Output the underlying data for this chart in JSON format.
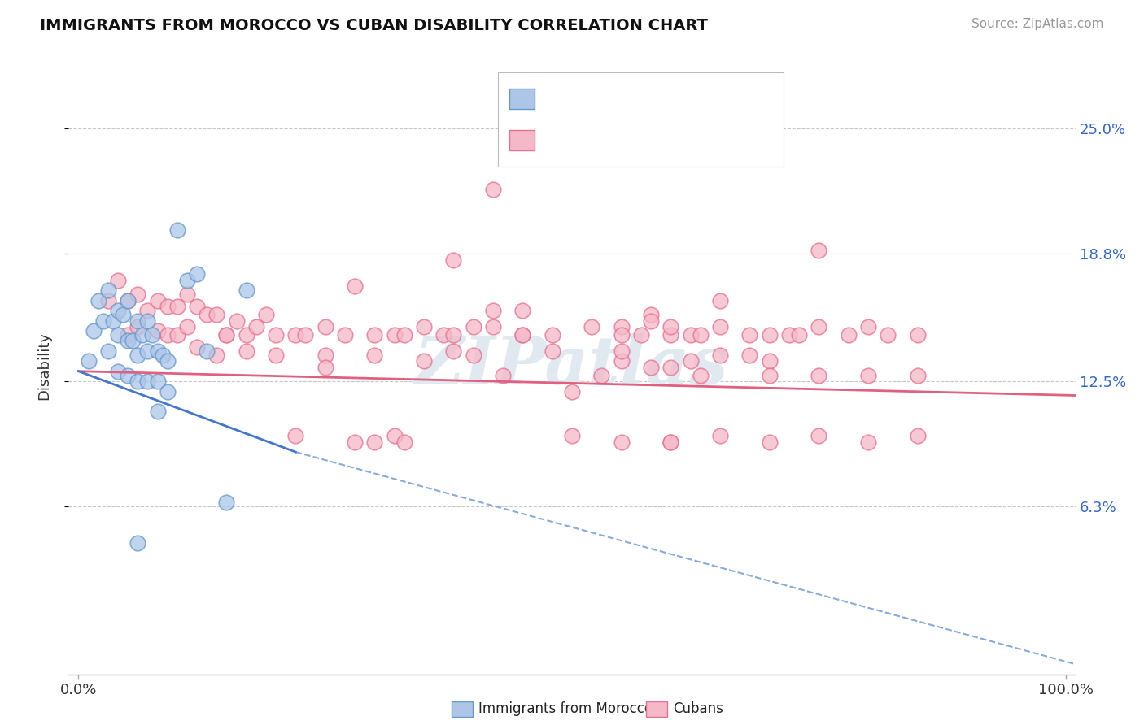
{
  "title": "IMMIGRANTS FROM MOROCCO VS CUBAN DISABILITY CORRELATION CHART",
  "source": "Source: ZipAtlas.com",
  "xlabel": "",
  "ylabel": "Disability",
  "xlim": [
    -0.01,
    1.01
  ],
  "ylim": [
    -0.02,
    0.285
  ],
  "yticks": [
    0.063,
    0.125,
    0.188,
    0.25
  ],
  "ytick_labels": [
    "6.3%",
    "12.5%",
    "18.8%",
    "25.0%"
  ],
  "xticks": [
    0.0,
    1.0
  ],
  "xtick_labels": [
    "0.0%",
    "100.0%"
  ],
  "blue_color": "#adc6e8",
  "pink_color": "#f5b8c8",
  "blue_edge": "#6699cc",
  "pink_edge": "#e87090",
  "blue_scatter_x": [
    0.01,
    0.015,
    0.02,
    0.025,
    0.03,
    0.03,
    0.035,
    0.04,
    0.04,
    0.04,
    0.045,
    0.05,
    0.05,
    0.05,
    0.055,
    0.06,
    0.06,
    0.06,
    0.065,
    0.07,
    0.07,
    0.07,
    0.075,
    0.08,
    0.08,
    0.085,
    0.09,
    0.09,
    0.1,
    0.11,
    0.12,
    0.13,
    0.15,
    0.17,
    0.08,
    0.06
  ],
  "blue_scatter_y": [
    0.135,
    0.15,
    0.165,
    0.155,
    0.17,
    0.14,
    0.155,
    0.16,
    0.148,
    0.13,
    0.158,
    0.165,
    0.145,
    0.128,
    0.145,
    0.155,
    0.138,
    0.125,
    0.148,
    0.155,
    0.14,
    0.125,
    0.148,
    0.14,
    0.125,
    0.138,
    0.135,
    0.12,
    0.2,
    0.175,
    0.178,
    0.14,
    0.065,
    0.17,
    0.11,
    0.045
  ],
  "pink_scatter_x": [
    0.03,
    0.04,
    0.05,
    0.05,
    0.06,
    0.06,
    0.07,
    0.08,
    0.08,
    0.09,
    0.09,
    0.1,
    0.1,
    0.11,
    0.11,
    0.12,
    0.12,
    0.13,
    0.14,
    0.15,
    0.16,
    0.17,
    0.18,
    0.19,
    0.2,
    0.22,
    0.23,
    0.25,
    0.27,
    0.28,
    0.3,
    0.32,
    0.33,
    0.35,
    0.37,
    0.38,
    0.4,
    0.4,
    0.42,
    0.42,
    0.45,
    0.45,
    0.48,
    0.5,
    0.52,
    0.55,
    0.55,
    0.55,
    0.57,
    0.58,
    0.6,
    0.6,
    0.62,
    0.62,
    0.63,
    0.65,
    0.65,
    0.68,
    0.68,
    0.7,
    0.72,
    0.73,
    0.75,
    0.75,
    0.78,
    0.8,
    0.82,
    0.85,
    0.38,
    0.42,
    0.38,
    0.3,
    0.58,
    0.45,
    0.25,
    0.2,
    0.17,
    0.14,
    0.15,
    0.25,
    0.35,
    0.48,
    0.55,
    0.58,
    0.6,
    0.65,
    0.7,
    0.32,
    0.28,
    0.22,
    0.33,
    0.5,
    0.6,
    0.43,
    0.53,
    0.63,
    0.7,
    0.75,
    0.8,
    0.85,
    0.3,
    0.55,
    0.6,
    0.65,
    0.7,
    0.75,
    0.8,
    0.85
  ],
  "pink_scatter_y": [
    0.165,
    0.175,
    0.165,
    0.148,
    0.168,
    0.152,
    0.16,
    0.165,
    0.15,
    0.162,
    0.148,
    0.162,
    0.148,
    0.168,
    0.152,
    0.162,
    0.142,
    0.158,
    0.158,
    0.148,
    0.155,
    0.148,
    0.152,
    0.158,
    0.148,
    0.148,
    0.148,
    0.152,
    0.148,
    0.172,
    0.148,
    0.148,
    0.148,
    0.152,
    0.148,
    0.148,
    0.152,
    0.138,
    0.152,
    0.22,
    0.148,
    0.148,
    0.148,
    0.12,
    0.152,
    0.152,
    0.148,
    0.135,
    0.148,
    0.158,
    0.148,
    0.152,
    0.148,
    0.135,
    0.148,
    0.165,
    0.152,
    0.138,
    0.148,
    0.148,
    0.148,
    0.148,
    0.152,
    0.19,
    0.148,
    0.152,
    0.148,
    0.148,
    0.185,
    0.16,
    0.14,
    0.138,
    0.155,
    0.16,
    0.138,
    0.138,
    0.14,
    0.138,
    0.148,
    0.132,
    0.135,
    0.14,
    0.14,
    0.132,
    0.132,
    0.138,
    0.135,
    0.098,
    0.095,
    0.098,
    0.095,
    0.098,
    0.095,
    0.128,
    0.128,
    0.128,
    0.128,
    0.128,
    0.128,
    0.128,
    0.095,
    0.095,
    0.095,
    0.098,
    0.095,
    0.098,
    0.095,
    0.098
  ],
  "background_color": "#ffffff",
  "grid_color": "#c8c8c8",
  "watermark_text": "ZIPatlas",
  "regression_blue_x0": 0.0,
  "regression_blue_x1": 0.22,
  "regression_blue_y0": 0.13,
  "regression_blue_y1": 0.09,
  "regression_blue_ext_x0": 0.22,
  "regression_blue_ext_x1": 1.01,
  "regression_blue_ext_y0": 0.09,
  "regression_blue_ext_y1": -0.015,
  "regression_pink_x0": 0.0,
  "regression_pink_x1": 1.01,
  "regression_pink_y0": 0.13,
  "regression_pink_y1": 0.118
}
